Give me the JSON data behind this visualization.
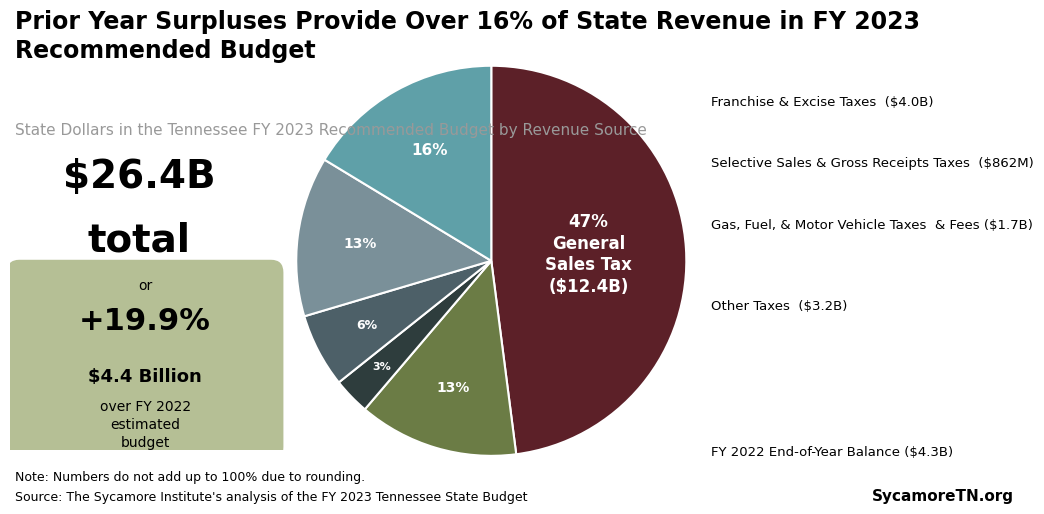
{
  "title": "Prior Year Surpluses Provide Over 16% of State Revenue in FY 2023\nRecommended Budget",
  "subtitle": "State Dollars in the Tennessee FY 2023 Recommended Budget by Revenue Source",
  "total_text": "$26.4B\ntotal",
  "or_label": "or",
  "box_pct": "+19.9%",
  "box_billion": "$4.4 Billion",
  "box_desc": "over FY 2022\nestimated\nbudget",
  "note": "Note: Numbers do not add up to 100% due to rounding.",
  "source": "Source: The Sycamore Institute's analysis of the FY 2023 Tennessee State Budget",
  "sycamore": "SycamoreTN.org",
  "slices": [
    {
      "pct": 47,
      "color": "#5c2028",
      "text_color": "white",
      "inner_label": "47%\nGeneral\nSales Tax\n($12.4B)",
      "external_label": null
    },
    {
      "pct": 13,
      "color": "#6b7c45",
      "text_color": "white",
      "inner_label": "13%",
      "external_label": "Franchise & Excise Taxes  ($4.0B)"
    },
    {
      "pct": 3,
      "color": "#2e3d3d",
      "text_color": "white",
      "inner_label": "3%",
      "external_label": "Selective Sales & Gross Receipts Taxes  ($862M)"
    },
    {
      "pct": 6,
      "color": "#4d6068",
      "text_color": "white",
      "inner_label": "6%",
      "external_label": "Gas, Fuel, & Motor Vehicle Taxes  & Fees ($1.7B)"
    },
    {
      "pct": 13,
      "color": "#7a9099",
      "text_color": "white",
      "inner_label": "13%",
      "external_label": "Other Taxes  ($3.2B)"
    },
    {
      "pct": 16,
      "color": "#5fa0a8",
      "text_color": "white",
      "inner_label": "16%",
      "external_label": "FY 2022 End-of-Year Balance ($4.3B)"
    }
  ],
  "background_color": "#ffffff",
  "box_color": "#b5bf95",
  "title_fontsize": 17,
  "subtitle_fontsize": 11,
  "note_fontsize": 9,
  "pie_startangle": 90
}
